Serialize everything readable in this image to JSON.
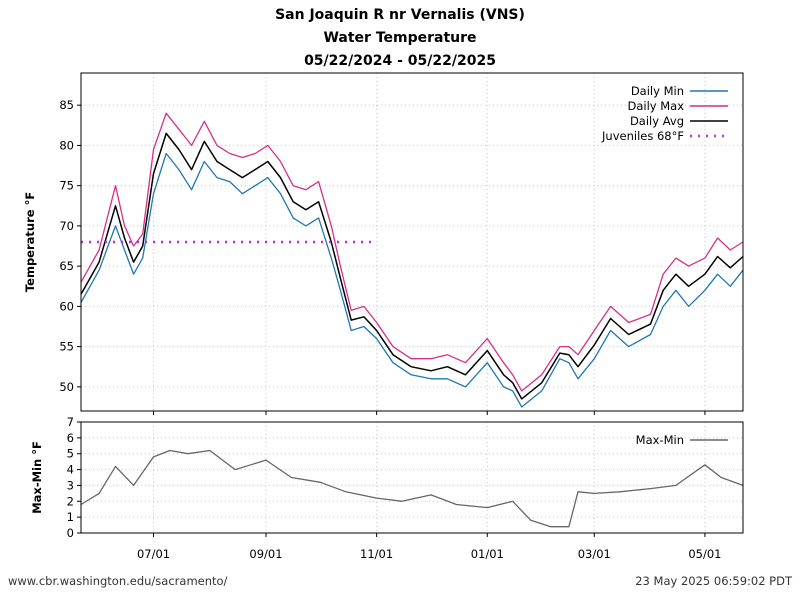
{
  "title": "San Joaquin R nr Vernalis (VNS)",
  "subtitle1": "Water Temperature",
  "subtitle2": "05/22/2024 - 05/22/2025",
  "footer_left": "www.cbr.washington.edu/sacramento/",
  "footer_right": "23 May 2025 06:59:02 PDT",
  "chart_data": [
    {
      "type": "line",
      "ylabel": "Temperature °F",
      "xlim": [
        "2024-05-22",
        "2025-05-22"
      ],
      "ylim": [
        47,
        89
      ],
      "yticks": [
        50,
        55,
        60,
        65,
        70,
        75,
        80,
        85
      ],
      "xticks": [
        {
          "date": "2024-07-01",
          "label": "07/01"
        },
        {
          "date": "2024-09-01",
          "label": "09/01"
        },
        {
          "date": "2024-11-01",
          "label": "11/01"
        },
        {
          "date": "2025-01-01",
          "label": "01/01"
        },
        {
          "date": "2025-03-01",
          "label": "03/01"
        },
        {
          "date": "2025-05-01",
          "label": "05/01"
        }
      ],
      "grid": true,
      "legend_position": "top-right",
      "x": [
        "2024-05-22",
        "2024-06-01",
        "2024-06-10",
        "2024-06-15",
        "2024-06-20",
        "2024-06-25",
        "2024-07-01",
        "2024-07-08",
        "2024-07-15",
        "2024-07-22",
        "2024-07-29",
        "2024-08-05",
        "2024-08-12",
        "2024-08-19",
        "2024-08-26",
        "2024-09-02",
        "2024-09-09",
        "2024-09-16",
        "2024-09-23",
        "2024-09-30",
        "2024-10-07",
        "2024-10-12",
        "2024-10-18",
        "2024-10-25",
        "2024-11-01",
        "2024-11-10",
        "2024-11-20",
        "2024-12-01",
        "2024-12-10",
        "2024-12-20",
        "2025-01-01",
        "2025-01-10",
        "2025-01-15",
        "2025-01-20",
        "2025-01-31",
        "2025-02-10",
        "2025-02-15",
        "2025-02-20",
        "2025-03-01",
        "2025-03-10",
        "2025-03-20",
        "2025-04-01",
        "2025-04-08",
        "2025-04-15",
        "2025-04-22",
        "2025-05-01",
        "2025-05-08",
        "2025-05-15",
        "2025-05-22"
      ],
      "series": [
        {
          "name": "Daily Min",
          "color": "#1f77b4",
          "values": [
            60.5,
            64.5,
            70.0,
            67.0,
            64.0,
            66.0,
            74.0,
            79.0,
            77.0,
            74.5,
            78.0,
            76.0,
            75.5,
            74.0,
            75.0,
            76.0,
            74.0,
            71.0,
            70.0,
            71.0,
            66.0,
            62.0,
            57.0,
            57.5,
            56.0,
            53.0,
            51.5,
            51.0,
            51.0,
            50.0,
            53.0,
            50.0,
            49.5,
            47.5,
            49.5,
            53.5,
            53.0,
            51.0,
            53.5,
            57.0,
            55.0,
            56.5,
            60.0,
            62.0,
            60.0,
            62.0,
            64.0,
            62.5,
            64.5
          ]
        },
        {
          "name": "Daily Max",
          "color": "#d62f8a",
          "values": [
            63.0,
            67.0,
            75.0,
            70.0,
            67.5,
            69.0,
            79.5,
            84.0,
            82.0,
            80.0,
            83.0,
            80.0,
            79.0,
            78.5,
            79.0,
            80.0,
            78.0,
            75.0,
            74.5,
            75.5,
            70.0,
            65.0,
            59.5,
            60.0,
            58.0,
            55.0,
            53.5,
            53.5,
            54.0,
            53.0,
            56.0,
            53.0,
            51.5,
            49.5,
            51.5,
            55.0,
            55.0,
            54.0,
            57.0,
            60.0,
            58.0,
            59.0,
            64.0,
            66.0,
            65.0,
            66.0,
            68.5,
            67.0,
            68.0
          ]
        },
        {
          "name": "Daily Avg",
          "color": "#000000",
          "values": [
            61.5,
            65.5,
            72.5,
            68.5,
            65.5,
            67.5,
            76.5,
            81.5,
            79.5,
            77.0,
            80.5,
            78.0,
            77.0,
            76.0,
            77.0,
            78.0,
            76.0,
            73.0,
            72.0,
            73.0,
            68.0,
            63.5,
            58.3,
            58.7,
            57.0,
            54.0,
            52.5,
            52.0,
            52.5,
            51.5,
            54.5,
            51.5,
            50.5,
            48.5,
            50.5,
            54.2,
            54.0,
            52.5,
            55.2,
            58.5,
            56.5,
            57.8,
            62.0,
            64.0,
            62.5,
            64.0,
            66.2,
            64.8,
            66.2
          ]
        },
        {
          "name": "Juveniles 68°F",
          "color": "#b82ed6",
          "x_range": [
            "2024-05-22",
            "2024-11-01"
          ],
          "value": 68
        }
      ]
    },
    {
      "type": "line",
      "ylabel": "Max-Min °F",
      "xlim": [
        "2024-05-22",
        "2025-05-22"
      ],
      "ylim": [
        0,
        7
      ],
      "yticks": [
        0,
        1,
        2,
        3,
        4,
        5,
        6,
        7
      ],
      "grid": true,
      "legend_position": "top-right",
      "x": [
        "2024-05-22",
        "2024-06-01",
        "2024-06-10",
        "2024-06-20",
        "2024-07-01",
        "2024-07-10",
        "2024-07-20",
        "2024-08-01",
        "2024-08-15",
        "2024-09-01",
        "2024-09-15",
        "2024-10-01",
        "2024-10-15",
        "2024-11-01",
        "2024-11-15",
        "2024-12-01",
        "2024-12-15",
        "2025-01-01",
        "2025-01-15",
        "2025-01-25",
        "2025-02-05",
        "2025-02-15",
        "2025-02-20",
        "2025-03-01",
        "2025-03-15",
        "2025-04-01",
        "2025-04-15",
        "2025-05-01",
        "2025-05-10",
        "2025-05-22"
      ],
      "series": [
        {
          "name": "Max-Min",
          "color": "#666666",
          "values": [
            1.8,
            2.5,
            4.2,
            3.0,
            4.8,
            5.2,
            5.0,
            5.2,
            4.0,
            4.6,
            3.5,
            3.2,
            2.6,
            2.2,
            2.0,
            2.4,
            1.8,
            1.6,
            2.0,
            0.8,
            0.4,
            0.4,
            2.6,
            2.5,
            2.6,
            2.8,
            3.0,
            4.3,
            3.5,
            3.0
          ]
        }
      ]
    }
  ]
}
